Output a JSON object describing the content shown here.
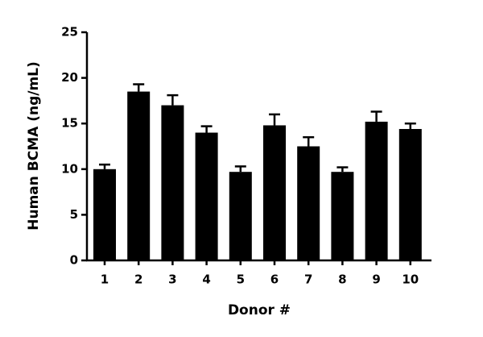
{
  "chart_data": {
    "type": "bar",
    "x_label": "Donor #",
    "y_label": "Human BCMA (ng/mL)",
    "categories": [
      "1",
      "2",
      "3",
      "4",
      "5",
      "6",
      "7",
      "8",
      "9",
      "10"
    ],
    "values": [
      10.0,
      18.5,
      17.0,
      14.0,
      9.7,
      14.8,
      12.5,
      9.7,
      15.2,
      14.4
    ],
    "errors": [
      0.5,
      0.8,
      1.1,
      0.7,
      0.6,
      1.2,
      1.0,
      0.5,
      1.1,
      0.6
    ],
    "color": "#000000",
    "ylim": [
      0,
      25
    ],
    "yticks": [
      0,
      5,
      10,
      15,
      20,
      25
    ]
  }
}
